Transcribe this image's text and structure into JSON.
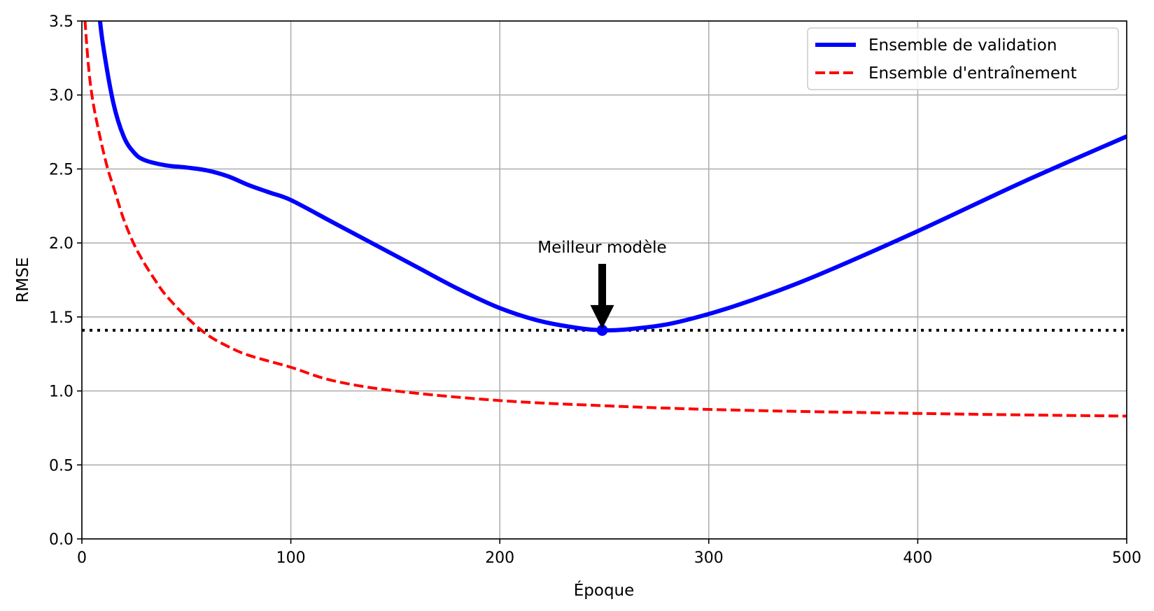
{
  "chart_data": {
    "type": "line",
    "title": "",
    "xlabel": "Époque",
    "ylabel": "RMSE",
    "xlim": [
      0,
      500
    ],
    "ylim": [
      0,
      3.5
    ],
    "xticks": [
      "0",
      "100",
      "200",
      "300",
      "400",
      "500"
    ],
    "yticks": [
      "0.0",
      "0.5",
      "1.0",
      "1.5",
      "2.0",
      "2.5",
      "3.0",
      "3.5"
    ],
    "grid": true,
    "legend_position": "top-right",
    "series": [
      {
        "name": "Ensemble de validation",
        "style": "solid",
        "color": "#0000ff",
        "x": [
          8,
          10,
          15,
          20,
          25,
          30,
          40,
          50,
          60,
          70,
          80,
          90,
          100,
          120,
          140,
          160,
          180,
          200,
          220,
          240,
          250,
          260,
          280,
          300,
          320,
          350,
          400,
          450,
          500
        ],
        "y": [
          3.6,
          3.35,
          2.95,
          2.72,
          2.61,
          2.56,
          2.525,
          2.51,
          2.49,
          2.45,
          2.39,
          2.34,
          2.29,
          2.14,
          1.99,
          1.84,
          1.69,
          1.56,
          1.47,
          1.42,
          1.41,
          1.415,
          1.45,
          1.52,
          1.61,
          1.77,
          2.08,
          2.41,
          2.72
        ]
      },
      {
        "name": "Ensemble d'entraînement",
        "style": "dashed",
        "color": "#ff0000",
        "x": [
          1,
          3,
          5,
          8,
          12,
          16,
          20,
          25,
          30,
          35,
          40,
          50,
          60,
          70,
          80,
          100,
          120,
          150,
          200,
          250,
          300,
          350,
          400,
          450,
          500
        ],
        "y": [
          3.6,
          3.22,
          2.98,
          2.76,
          2.52,
          2.34,
          2.16,
          1.99,
          1.86,
          1.75,
          1.65,
          1.5,
          1.38,
          1.3,
          1.24,
          1.16,
          1.07,
          1.0,
          0.935,
          0.9,
          0.875,
          0.86,
          0.848,
          0.838,
          0.83
        ]
      }
    ],
    "reference_line": {
      "y": 1.41,
      "style": "dotted",
      "color": "#000000"
    },
    "best_point": {
      "x": 249,
      "y": 1.41,
      "color": "#0000ff"
    },
    "annotation": {
      "text": "Meilleur modèle",
      "x": 249,
      "y": 1.41
    }
  }
}
